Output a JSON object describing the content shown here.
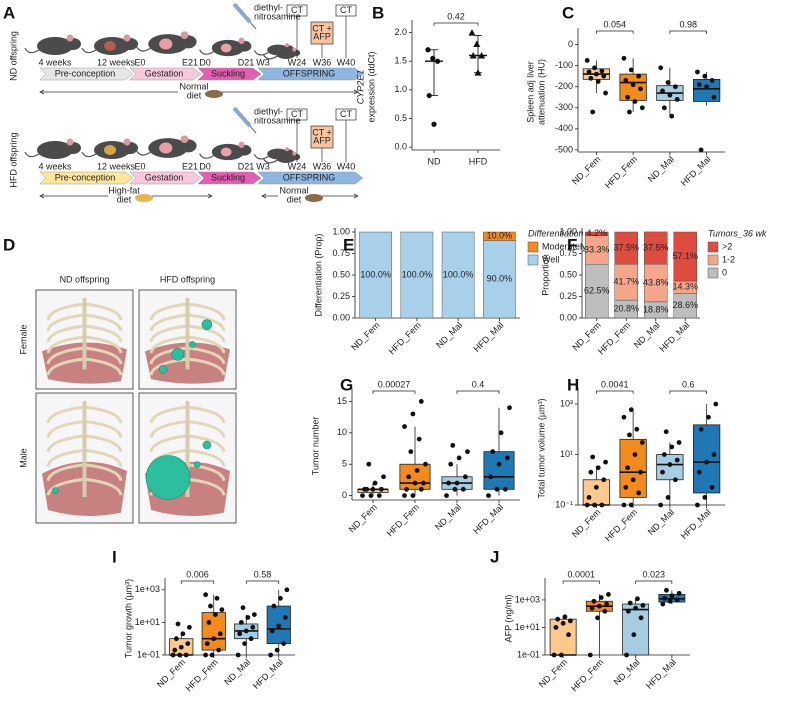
{
  "schematic": {
    "panel": "A",
    "injection": [
      "diethyl-",
      "nitrosamine"
    ],
    "ct": "CT",
    "ct_afp": [
      "CT +",
      "AFP"
    ],
    "rows": [
      {
        "label": "ND offspring",
        "times": [
          "4 weeks",
          "12 weeks",
          "E0",
          "E21",
          "D0",
          "D21",
          "W3",
          "W24",
          "W36",
          "W40"
        ],
        "stages": [
          "Pre-conception",
          "Gestation",
          "Suckling",
          "OFFSPRING"
        ],
        "stage_colors": [
          "#e6e6e6",
          "#f8c8dc",
          "#e45db4",
          "#8db6e0"
        ],
        "diets": [
          [
            "Normal",
            "diet"
          ]
        ]
      },
      {
        "label": "HFD offspring",
        "times": [
          "4 weeks",
          "12 weeks",
          "E0",
          "E21",
          "D0",
          "D21",
          "W3",
          "W24",
          "W36",
          "W40"
        ],
        "stages": [
          "Pre-conception",
          "Gestation",
          "Suckling",
          "OFFSPRING"
        ],
        "stage_colors": [
          "#fce79a",
          "#f8c8dc",
          "#e45db4",
          "#8db6e0"
        ],
        "diets": [
          [
            "High-fat",
            "diet"
          ],
          [
            "Normal",
            "diet"
          ]
        ]
      }
    ]
  },
  "renderings": {
    "panel": "D",
    "columns": [
      "ND offspring",
      "HFD offspring"
    ],
    "rows": [
      "Female",
      "Male"
    ]
  },
  "chart_data": [
    {
      "type": "dot",
      "panel": "B",
      "ylabel": [
        "CYP2E1",
        "expression (ddCt)"
      ],
      "categories": [
        "ND",
        "HFD"
      ],
      "markers": [
        "circle",
        "triangle"
      ],
      "points": [
        [
          1.7,
          1.55,
          1.5,
          0.9,
          0.4
        ],
        [
          2.0,
          1.8,
          1.6,
          1.6,
          1.3
        ]
      ],
      "median": [
        1.5,
        1.6
      ],
      "error_low": [
        0.9,
        1.3
      ],
      "error_high": [
        1.7,
        1.95
      ],
      "ylim": [
        -0.05,
        2.15
      ],
      "yticks": [
        {
          "value": 0,
          "label": "0.0"
        },
        0.5,
        {
          "value": 1,
          "label": "1.0"
        },
        1.5,
        {
          "value": 2,
          "label": "2.0"
        }
      ],
      "comparisons": [
        "0.42"
      ]
    },
    {
      "type": "box",
      "panel": "C",
      "ylabel": [
        "Spleen adj liver",
        "attenuation (HU)"
      ],
      "categories": [
        "ND_Fem",
        "HFD_Fem",
        "ND_Mal",
        "HFD_Mal"
      ],
      "colors": [
        "#fdc98c",
        "#f28a1c",
        "#a6cee3",
        "#1f78b4"
      ],
      "boxes": [
        {
          "q1": -165,
          "median": -140,
          "q3": -115,
          "low": -230,
          "high": -75,
          "points": [
            -75,
            -110,
            -125,
            -130,
            -140,
            -150,
            -160,
            -175,
            -230,
            -320
          ]
        },
        {
          "q1": -265,
          "median": -180,
          "q3": -140,
          "low": -320,
          "high": -65,
          "points": [
            -65,
            -120,
            -150,
            -170,
            -190,
            -210,
            -250,
            -270,
            -300,
            -320
          ]
        },
        {
          "q1": -265,
          "median": -230,
          "q3": -195,
          "low": -340,
          "high": -110,
          "points": [
            -110,
            -180,
            -200,
            -220,
            -240,
            -260,
            -300,
            -340
          ]
        },
        {
          "q1": -270,
          "median": -210,
          "q3": -165,
          "low": -290,
          "high": -130,
          "points": [
            -130,
            -150,
            -170,
            -190,
            -200,
            -250,
            -500
          ]
        }
      ],
      "ylim": [
        -510,
        60
      ],
      "yticks": [
        0,
        -100,
        -200,
        -300,
        -400,
        -500
      ],
      "comparisons": [
        "0.054",
        "0.98"
      ]
    },
    {
      "type": "stacked_bar",
      "panel": "E",
      "ylabel": [
        "Differentiation (Prop)"
      ],
      "categories": [
        "ND_Fem",
        "HFD_Fem",
        "ND_Mal",
        "HFD_Mal"
      ],
      "legend_title": "Differentiation",
      "legend": "right",
      "series": [
        {
          "name": "Well",
          "color": "#a8d0ea",
          "values": [
            1,
            1,
            1,
            0.9
          ],
          "value_labels": [
            "100.0%",
            "100.0%",
            "100.0%",
            "90.0%"
          ]
        },
        {
          "name": "Moderately",
          "color": "#f28a1c",
          "values": [
            0,
            0,
            0,
            0.1
          ],
          "value_labels": [
            null,
            null,
            null,
            "10.0%"
          ]
        }
      ],
      "ylim": [
        0,
        1
      ],
      "yticks": [
        {
          "value": 0,
          "label": "0.00"
        },
        0.25,
        {
          "value": 0.5,
          "label": "0.50"
        },
        0.75,
        {
          "value": 1,
          "label": "1.00"
        }
      ]
    },
    {
      "type": "stacked_bar",
      "panel": "F",
      "ylabel": [
        "Proportion"
      ],
      "categories": [
        "ND_Fem",
        "HFD_Fem",
        "ND_Mal",
        "HFD_Mal"
      ],
      "legend_title": "Tumors_36 wk",
      "legend": "right",
      "series": [
        {
          "name": "0",
          "color": "#bdbdbd",
          "values": [
            0.625,
            0.208,
            0.188,
            0.286
          ],
          "value_labels": [
            "62.5%",
            "20.8%",
            "18.8%",
            "28.6%"
          ]
        },
        {
          "name": "1-2",
          "color": "#f5a68a",
          "values": [
            0.333,
            0.417,
            0.438,
            0.143
          ],
          "value_labels": [
            "33.3%",
            "41.7%",
            "43.8%",
            "14.3%"
          ]
        },
        {
          "name": ">2",
          "color": "#de4b3f",
          "values": [
            0.042,
            0.375,
            0.375,
            0.571
          ],
          "value_labels": [
            "4.2%",
            "37.5%",
            "37.5%",
            "57.1%"
          ]
        }
      ],
      "ylim": [
        0,
        1
      ],
      "yticks": [
        {
          "value": 0,
          "label": "0.00"
        },
        0.25,
        {
          "value": 0.5,
          "label": "0.50"
        },
        0.75,
        {
          "value": 1,
          "label": "1.00"
        }
      ]
    },
    {
      "type": "box",
      "panel": "G",
      "ylabel": [
        "Tumor number"
      ],
      "categories": [
        "ND_Fem",
        "HFD_Fem",
        "ND_Mal",
        "HFD_Mal"
      ],
      "colors": [
        "#fdc98c",
        "#f28a1c",
        "#a6cee3",
        "#1f78b4"
      ],
      "boxes": [
        {
          "q1": 0.5,
          "median": 1,
          "q3": 1,
          "low": 0,
          "high": 2,
          "points": [
            0,
            0,
            0,
            1,
            1,
            1,
            1,
            2,
            3,
            5
          ]
        },
        {
          "q1": 1,
          "median": 2,
          "q3": 5,
          "low": 0,
          "high": 11,
          "points": [
            0,
            0,
            1,
            1,
            2,
            2,
            3,
            4,
            5,
            7,
            9,
            11,
            13,
            15
          ]
        },
        {
          "q1": 1,
          "median": 2,
          "q3": 3,
          "low": 0,
          "high": 5,
          "points": [
            0,
            1,
            1,
            2,
            2,
            3,
            5,
            6,
            7,
            8
          ]
        },
        {
          "q1": 1,
          "median": 3,
          "q3": 7,
          "low": 0,
          "high": 14,
          "points": [
            0,
            1,
            1,
            3,
            5,
            6,
            7,
            10,
            14
          ]
        }
      ],
      "ylim": [
        -0.7,
        16.5
      ],
      "yticks": [
        0,
        5,
        10,
        15
      ],
      "comparisons": [
        "0.00027",
        "0.4"
      ]
    },
    {
      "type": "box",
      "panel": "H",
      "ylabel": [
        "Total tumor volume (µm³)"
      ],
      "ylog": true,
      "categories": [
        "ND_Fem",
        "HFD_Fem",
        "ND_Mal",
        "HFD_Mal"
      ],
      "colors": [
        "#fdc98c",
        "#f28a1c",
        "#a6cee3",
        "#1f78b4"
      ],
      "boxes": [
        {
          "q1": 0.1,
          "median": 0.1,
          "q3": 1,
          "low": 0.1,
          "high": 3,
          "points": [
            0.1,
            0.1,
            0.1,
            0.2,
            0.5,
            1,
            2,
            3,
            5,
            8
          ]
        },
        {
          "q1": 0.2,
          "median": 2,
          "q3": 40,
          "low": 0.1,
          "high": 600,
          "points": [
            0.1,
            0.1,
            0.3,
            0.5,
            1,
            2,
            3,
            10,
            30,
            60,
            100,
            300,
            600
          ]
        },
        {
          "q1": 1,
          "median": 4,
          "q3": 10,
          "low": 0.1,
          "high": 30,
          "points": [
            0.1,
            0.2,
            1,
            2,
            4,
            6,
            10,
            20,
            30,
            80
          ]
        },
        {
          "q1": 0.3,
          "median": 5,
          "q3": 150,
          "low": 0.1,
          "high": 1000,
          "points": [
            0.1,
            0.2,
            0.5,
            2,
            5,
            10,
            100,
            300,
            1000
          ]
        }
      ],
      "ylim": [
        0.1,
        3000
      ],
      "yticks": [
        {
          "value": 0.1,
          "label": "10⁻¹"
        },
        {
          "value": 10,
          "label": "10¹"
        },
        {
          "value": 1000,
          "label": "10³"
        }
      ],
      "comparisons": [
        "0.0041",
        "0.6"
      ]
    },
    {
      "type": "box",
      "panel": "I",
      "ylabel": [
        "Tumor growth (µm³)"
      ],
      "ylog": true,
      "categories": [
        "ND_Fem",
        "HFD_Fem",
        "ND_Mal",
        "HFD_Mal"
      ],
      "colors": [
        "#fdc98c",
        "#f28a1c",
        "#a6cee3",
        "#1f78b4"
      ],
      "boxes": [
        {
          "q1": 0.1,
          "median": 0.1,
          "q3": 1,
          "low": 0.1,
          "high": 2,
          "points": [
            0.1,
            0.1,
            0.1,
            0.2,
            0.3,
            0.5,
            1,
            2,
            5,
            8
          ]
        },
        {
          "q1": 0.2,
          "median": 1,
          "q3": 40,
          "low": 0.1,
          "high": 500,
          "points": [
            0.1,
            0.1,
            0.2,
            0.5,
            1,
            2,
            10,
            30,
            60,
            100,
            300,
            500
          ]
        },
        {
          "q1": 1,
          "median": 3,
          "q3": 8,
          "low": 0.1,
          "high": 30,
          "points": [
            0.1,
            0.5,
            1,
            2,
            3,
            5,
            10,
            20,
            30,
            80
          ]
        },
        {
          "q1": 0.5,
          "median": 4,
          "q3": 100,
          "low": 0.1,
          "high": 1000,
          "points": [
            0.1,
            0.2,
            0.5,
            3,
            6,
            20,
            100,
            300,
            1000
          ]
        }
      ],
      "ylim": [
        0.1,
        3000
      ],
      "yticks": [
        {
          "value": 0.1,
          "label": "1e-01"
        },
        {
          "value": 10,
          "label": "1e+01"
        },
        {
          "value": 1000,
          "label": "1e+03"
        }
      ],
      "comparisons": [
        "0.006",
        "0.58"
      ]
    },
    {
      "type": "box",
      "panel": "J",
      "ylabel": [
        "AFP (ng/ml)"
      ],
      "ylog": true,
      "categories": [
        "ND_Fem",
        "HFD_Fem",
        "ND_Mal",
        "HFD_Mal"
      ],
      "colors": [
        "#fdc98c",
        "#f28a1c",
        "#a6cee3",
        "#1f78b4"
      ],
      "boxes": [
        {
          "q1": 0.1,
          "median": 0.1,
          "q3": 40,
          "low": 0.1,
          "high": 60,
          "points": [
            0.1,
            0.1,
            3,
            10,
            20,
            30,
            40,
            60
          ]
        },
        {
          "q1": 150,
          "median": 350,
          "q3": 800,
          "low": 0.1,
          "high": 2500,
          "points": [
            0.1,
            50,
            150,
            250,
            350,
            500,
            800,
            1500,
            2500
          ]
        },
        {
          "q1": 0.1,
          "median": 200,
          "q3": 500,
          "low": 0.1,
          "high": 1200,
          "points": [
            0.1,
            3,
            50,
            150,
            250,
            400,
            600,
            1200
          ]
        },
        {
          "q1": 700,
          "median": 1200,
          "q3": 2500,
          "low": 500,
          "high": 5000,
          "points": [
            500,
            800,
            1000,
            1300,
            2000,
            3000,
            5000
          ]
        }
      ],
      "ylim": [
        0.1,
        20000
      ],
      "yticks": [
        {
          "value": 0.1,
          "label": "1e-01"
        },
        {
          "value": 10,
          "label": "1e+01"
        },
        {
          "value": 1000,
          "label": "1e+03"
        }
      ],
      "comparisons": [
        "0.0001",
        "0.023"
      ]
    }
  ]
}
